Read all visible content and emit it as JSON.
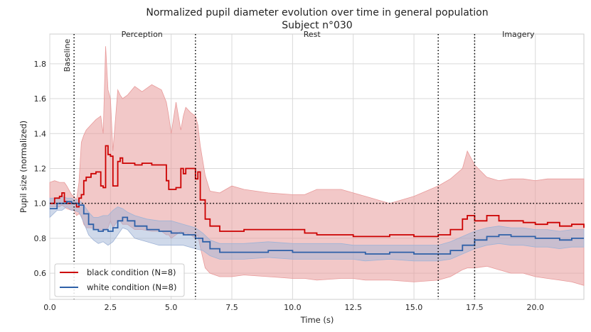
{
  "chart_data": {
    "type": "line",
    "title": "Normalized pupil diameter evolution over time in general population",
    "subtitle": "Subject n°030",
    "xlabel": "Time (s)",
    "ylabel": "Pupil size (normalized)",
    "xlim": [
      0,
      22
    ],
    "ylim": [
      0.45,
      1.97
    ],
    "xticks": [
      0,
      2.5,
      5,
      7.5,
      10,
      12.5,
      15,
      17.5,
      20
    ],
    "xtick_labels": [
      "0.0",
      "2.5",
      "5.0",
      "7.5",
      "10.0",
      "12.5",
      "15.0",
      "17.5",
      "20.0"
    ],
    "yticks": [
      0.6,
      0.8,
      1.0,
      1.2,
      1.4,
      1.6,
      1.8
    ],
    "ytick_labels": [
      "0.6",
      "0.8",
      "1.0",
      "1.2",
      "1.4",
      "1.6",
      "1.8"
    ],
    "grid": true,
    "legend_position": "lower-left",
    "reference_line_y": 1.0,
    "phase_boundaries": [
      1,
      6,
      16,
      17.5
    ],
    "phases": [
      {
        "label": "Baseline",
        "x": 0.7,
        "orientation": "vertical"
      },
      {
        "label": "Perception",
        "x": 3.8,
        "orientation": "horizontal"
      },
      {
        "label": "Rest",
        "x": 10.8,
        "orientation": "horizontal"
      },
      {
        "label": "Imagery",
        "x": 19.3,
        "orientation": "horizontal"
      }
    ],
    "series": [
      {
        "name": "black condition (N=8)",
        "color": "#cc0000",
        "band_color": "#e89a9a",
        "x": [
          0,
          0.2,
          0.4,
          0.5,
          0.6,
          0.7,
          0.9,
          1.0,
          1.1,
          1.2,
          1.3,
          1.4,
          1.5,
          1.7,
          1.9,
          2.1,
          2.2,
          2.3,
          2.4,
          2.5,
          2.6,
          2.8,
          2.9,
          3.0,
          3.2,
          3.5,
          3.8,
          4.2,
          4.6,
          4.8,
          4.9,
          5.0,
          5.2,
          5.4,
          5.5,
          5.6,
          5.8,
          6.0,
          6.1,
          6.2,
          6.4,
          6.6,
          7.0,
          7.5,
          8.0,
          9.0,
          10.0,
          10.5,
          11.0,
          12.0,
          12.5,
          13.0,
          14.0,
          15.0,
          16.0,
          16.5,
          17.0,
          17.2,
          17.5,
          18.0,
          18.5,
          19.0,
          19.5,
          20.0,
          20.5,
          21.0,
          21.5,
          22.0
        ],
        "values": [
          1.0,
          1.03,
          1.04,
          1.06,
          1.01,
          1.0,
          1.0,
          1.0,
          0.98,
          1.03,
          1.05,
          1.13,
          1.15,
          1.17,
          1.18,
          1.1,
          1.09,
          1.33,
          1.28,
          1.27,
          1.1,
          1.24,
          1.26,
          1.23,
          1.23,
          1.22,
          1.23,
          1.22,
          1.22,
          1.13,
          1.08,
          1.08,
          1.09,
          1.2,
          1.17,
          1.2,
          1.2,
          1.14,
          1.18,
          1.02,
          0.91,
          0.87,
          0.84,
          0.84,
          0.85,
          0.85,
          0.85,
          0.83,
          0.82,
          0.82,
          0.81,
          0.81,
          0.82,
          0.81,
          0.82,
          0.85,
          0.91,
          0.93,
          0.9,
          0.93,
          0.9,
          0.9,
          0.89,
          0.88,
          0.89,
          0.87,
          0.88,
          0.86
        ],
        "band_upper": [
          1.12,
          1.13,
          1.12,
          1.12,
          1.12,
          1.1,
          1.05,
          1.04,
          1.02,
          1.12,
          1.35,
          1.39,
          1.42,
          1.45,
          1.48,
          1.5,
          1.4,
          1.9,
          1.65,
          1.6,
          1.3,
          1.65,
          1.62,
          1.6,
          1.62,
          1.67,
          1.64,
          1.68,
          1.65,
          1.58,
          1.5,
          1.4,
          1.58,
          1.42,
          1.5,
          1.55,
          1.52,
          1.5,
          1.45,
          1.33,
          1.16,
          1.07,
          1.06,
          1.1,
          1.08,
          1.06,
          1.05,
          1.05,
          1.08,
          1.08,
          1.06,
          1.04,
          1.0,
          1.04,
          1.1,
          1.14,
          1.2,
          1.3,
          1.22,
          1.15,
          1.13,
          1.14,
          1.14,
          1.13,
          1.14,
          1.14,
          1.14,
          1.14
        ],
        "band_lower": [
          0.98,
          0.98,
          0.98,
          0.99,
          0.98,
          0.97,
          0.96,
          0.96,
          0.93,
          0.94,
          0.93,
          0.88,
          0.86,
          0.86,
          0.85,
          0.85,
          0.84,
          0.85,
          0.86,
          0.9,
          0.86,
          0.9,
          0.9,
          0.88,
          0.88,
          0.85,
          0.85,
          0.84,
          0.84,
          0.82,
          0.82,
          0.8,
          0.82,
          0.84,
          0.82,
          0.83,
          0.82,
          0.8,
          0.82,
          0.75,
          0.63,
          0.6,
          0.58,
          0.58,
          0.59,
          0.58,
          0.57,
          0.57,
          0.56,
          0.57,
          0.57,
          0.56,
          0.56,
          0.55,
          0.56,
          0.58,
          0.62,
          0.63,
          0.63,
          0.64,
          0.62,
          0.6,
          0.6,
          0.58,
          0.57,
          0.56,
          0.55,
          0.53
        ]
      },
      {
        "name": "white condition (N=8)",
        "color": "#2e60a8",
        "band_color": "#9fb3d6",
        "x": [
          0,
          0.3,
          0.5,
          0.7,
          0.9,
          1.0,
          1.2,
          1.4,
          1.6,
          1.8,
          2.0,
          2.2,
          2.4,
          2.6,
          2.8,
          3.0,
          3.2,
          3.5,
          4.0,
          4.5,
          5.0,
          5.5,
          6.0,
          6.3,
          6.6,
          7.0,
          7.5,
          8.0,
          9.0,
          10.0,
          10.5,
          11.0,
          12.0,
          12.5,
          13.0,
          14.0,
          15.0,
          16.0,
          16.5,
          17.0,
          17.5,
          18.0,
          18.5,
          19.0,
          19.5,
          20.0,
          20.5,
          21.0,
          21.5,
          22.0
        ],
        "values": [
          0.97,
          1.0,
          1.0,
          1.01,
          1.0,
          1.0,
          0.99,
          0.94,
          0.88,
          0.85,
          0.84,
          0.85,
          0.84,
          0.86,
          0.9,
          0.92,
          0.9,
          0.87,
          0.85,
          0.84,
          0.83,
          0.82,
          0.8,
          0.78,
          0.74,
          0.72,
          0.72,
          0.72,
          0.73,
          0.72,
          0.72,
          0.72,
          0.72,
          0.72,
          0.71,
          0.72,
          0.71,
          0.71,
          0.73,
          0.76,
          0.79,
          0.81,
          0.82,
          0.81,
          0.81,
          0.8,
          0.8,
          0.79,
          0.8,
          0.8
        ],
        "band_upper": [
          1.03,
          1.03,
          1.04,
          1.03,
          1.03,
          1.02,
          1.02,
          0.99,
          0.95,
          0.92,
          0.92,
          0.93,
          0.93,
          0.96,
          0.98,
          0.97,
          0.95,
          0.93,
          0.91,
          0.9,
          0.9,
          0.88,
          0.86,
          0.83,
          0.79,
          0.77,
          0.77,
          0.77,
          0.78,
          0.77,
          0.77,
          0.77,
          0.77,
          0.76,
          0.76,
          0.76,
          0.76,
          0.76,
          0.78,
          0.81,
          0.84,
          0.86,
          0.87,
          0.86,
          0.86,
          0.85,
          0.85,
          0.84,
          0.85,
          0.85
        ],
        "band_lower": [
          0.92,
          0.96,
          0.96,
          0.98,
          0.96,
          0.96,
          0.95,
          0.89,
          0.82,
          0.79,
          0.77,
          0.78,
          0.76,
          0.78,
          0.82,
          0.86,
          0.85,
          0.8,
          0.78,
          0.76,
          0.76,
          0.76,
          0.74,
          0.73,
          0.7,
          0.68,
          0.68,
          0.68,
          0.69,
          0.68,
          0.68,
          0.68,
          0.68,
          0.68,
          0.67,
          0.68,
          0.67,
          0.67,
          0.68,
          0.71,
          0.74,
          0.76,
          0.77,
          0.76,
          0.76,
          0.75,
          0.75,
          0.74,
          0.75,
          0.75
        ]
      }
    ]
  }
}
